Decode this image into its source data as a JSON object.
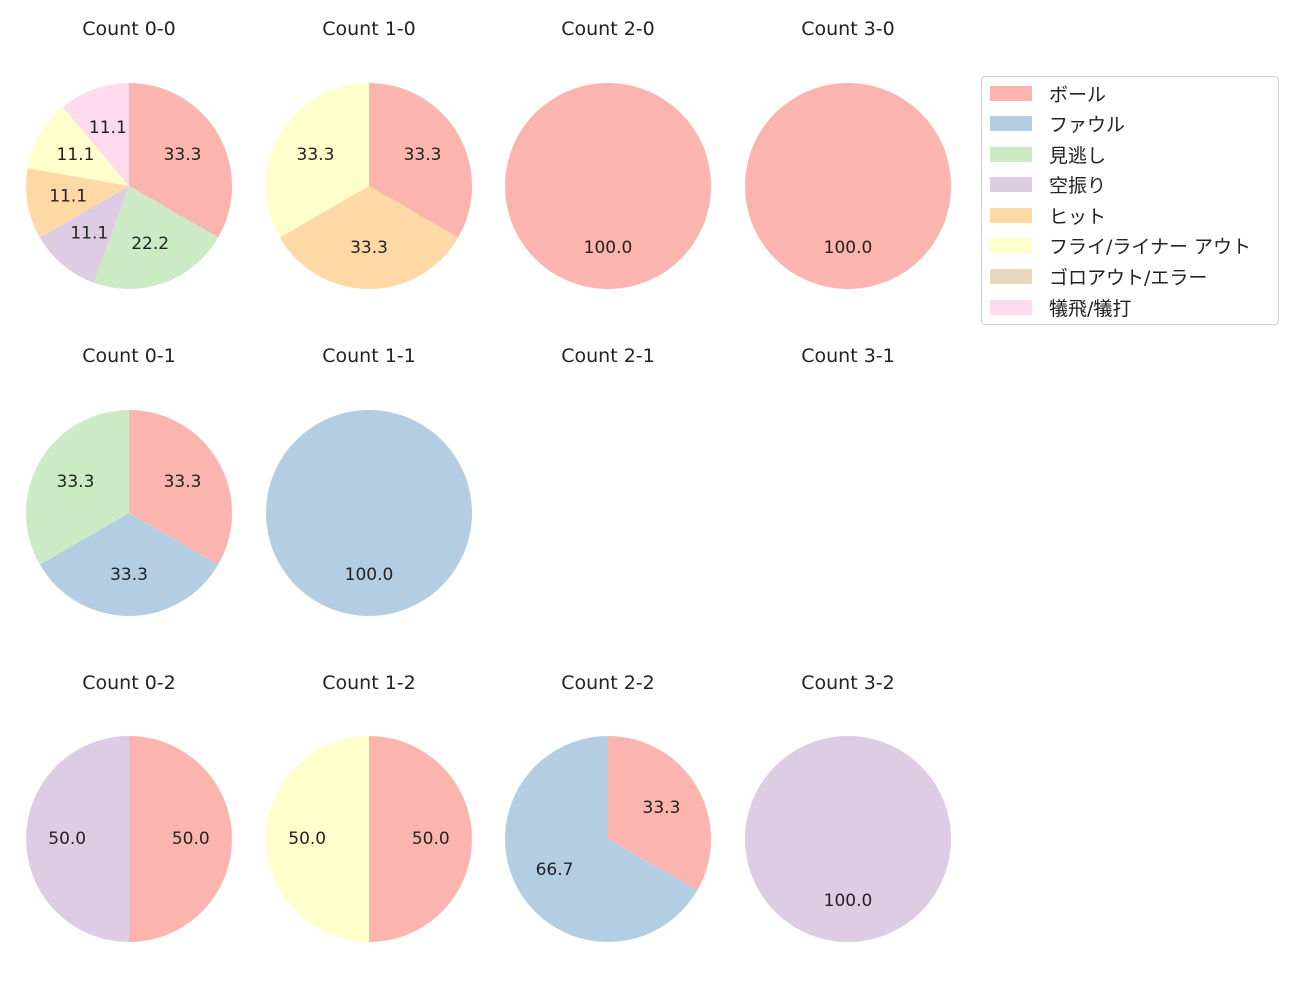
{
  "colors": {
    "ボール": "#fbb4ae",
    "ファウル": "#b3cde3",
    "見逃し": "#ccebc5",
    "空振り": "#decbe4",
    "ヒット": "#fed9a6",
    "フライ/ライナー アウト": "#ffffcc",
    "ゴロアウト/エラー": "#e5d8bd",
    "犠飛/犠打": "#fddaec"
  },
  "legend": {
    "items": [
      {
        "label": "ボール",
        "color": "#fbb4ae"
      },
      {
        "label": "ファウル",
        "color": "#b3cde3"
      },
      {
        "label": "見逃し",
        "color": "#ccebc5"
      },
      {
        "label": "空振り",
        "color": "#decbe4"
      },
      {
        "label": "ヒット",
        "color": "#fed9a6"
      },
      {
        "label": "フライ/ライナー アウト",
        "color": "#ffffcc"
      },
      {
        "label": "ゴロアウト/エラー",
        "color": "#e5d8bd"
      },
      {
        "label": "犠飛/犠打",
        "color": "#fddaec"
      }
    ]
  },
  "chart_data": [
    {
      "type": "pie",
      "title": "Count 0-0",
      "categories": [
        "ボール",
        "見逃し",
        "空振り",
        "ヒット",
        "フライ/ライナー アウト",
        "犠飛/犠打"
      ],
      "values": [
        33.3,
        22.2,
        11.1,
        11.1,
        11.1,
        11.1
      ]
    },
    {
      "type": "pie",
      "title": "Count 1-0",
      "categories": [
        "ボール",
        "ヒット",
        "フライ/ライナー アウト"
      ],
      "values": [
        33.3,
        33.3,
        33.3
      ]
    },
    {
      "type": "pie",
      "title": "Count 2-0",
      "categories": [
        "ボール"
      ],
      "values": [
        100.0
      ]
    },
    {
      "type": "pie",
      "title": "Count 3-0",
      "categories": [
        "ボール"
      ],
      "values": [
        100.0
      ]
    },
    {
      "type": "pie",
      "title": "Count 0-1",
      "categories": [
        "ボール",
        "ファウル",
        "見逃し"
      ],
      "values": [
        33.3,
        33.3,
        33.3
      ]
    },
    {
      "type": "pie",
      "title": "Count 1-1",
      "categories": [
        "ファウル"
      ],
      "values": [
        100.0
      ]
    },
    {
      "type": "pie",
      "title": "Count 2-1",
      "categories": [],
      "values": []
    },
    {
      "type": "pie",
      "title": "Count 3-1",
      "categories": [],
      "values": []
    },
    {
      "type": "pie",
      "title": "Count 0-2",
      "categories": [
        "ボール",
        "空振り"
      ],
      "values": [
        50.0,
        50.0
      ]
    },
    {
      "type": "pie",
      "title": "Count 1-2",
      "categories": [
        "ボール",
        "フライ/ライナー アウト"
      ],
      "values": [
        50.0,
        50.0
      ]
    },
    {
      "type": "pie",
      "title": "Count 2-2",
      "categories": [
        "ボール",
        "ファウル"
      ],
      "values": [
        33.3,
        66.7
      ]
    },
    {
      "type": "pie",
      "title": "Count 3-2",
      "categories": [
        "空振り"
      ],
      "values": [
        100.0
      ]
    }
  ]
}
